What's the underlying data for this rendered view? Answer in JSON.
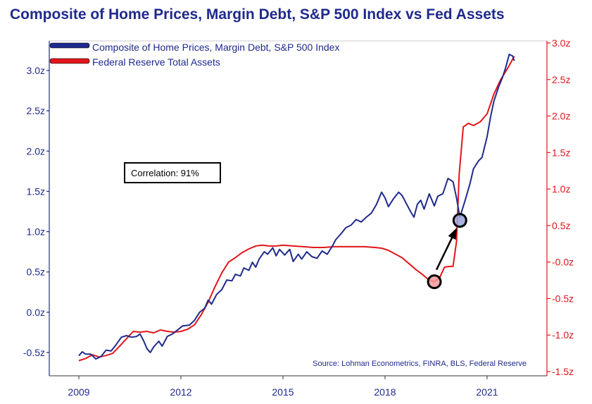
{
  "chart_data": {
    "type": "line",
    "title": "Composite of Home Prices, Margin Debt, S&P 500 Index vs Fed Assets",
    "x_ticks": [
      "2009",
      "2012",
      "2015",
      "2018",
      "2021"
    ],
    "left_axis": {
      "ylim": [
        -0.6,
        3.3
      ],
      "ticks": [
        {
          "value": -0.5,
          "label": "-0.5z"
        },
        {
          "value": 0.0,
          "label": "0.0z"
        },
        {
          "value": 0.5,
          "label": "0.5z"
        },
        {
          "value": 1.0,
          "label": "1.0z"
        },
        {
          "value": 1.5,
          "label": "1.5z"
        },
        {
          "value": 2.0,
          "label": "2.0z"
        },
        {
          "value": 2.5,
          "label": "2.5z"
        },
        {
          "value": 3.0,
          "label": "3.0z"
        }
      ]
    },
    "right_axis": {
      "ylim": [
        -1.5,
        3.0
      ],
      "ticks": [
        {
          "value": -1.5,
          "label": "-1.5z"
        },
        {
          "value": -1.0,
          "label": "-1.0z"
        },
        {
          "value": -0.5,
          "label": "-0.5z"
        },
        {
          "value": 0.0,
          "label": "-0.0z"
        },
        {
          "value": 0.5,
          "label": "0.5z"
        },
        {
          "value": 1.0,
          "label": "1.0z"
        },
        {
          "value": 1.5,
          "label": "1.5z"
        },
        {
          "value": 2.0,
          "label": "2.0z"
        },
        {
          "value": 2.5,
          "label": "2.5z"
        },
        {
          "value": 3.0,
          "label": "3.0z"
        }
      ]
    },
    "series": [
      {
        "name": "Composite of Home Prices, Margin Debt, S&P 500 Index",
        "axis": "left",
        "color": "#1f2a8c",
        "points": [
          [
            2009.0,
            -0.54
          ],
          [
            2009.1,
            -0.49
          ],
          [
            2009.2,
            -0.52
          ],
          [
            2009.35,
            -0.52
          ],
          [
            2009.5,
            -0.58
          ],
          [
            2009.65,
            -0.55
          ],
          [
            2009.8,
            -0.47
          ],
          [
            2009.95,
            -0.48
          ],
          [
            2010.1,
            -0.4
          ],
          [
            2010.25,
            -0.31
          ],
          [
            2010.4,
            -0.29
          ],
          [
            2010.55,
            -0.31
          ],
          [
            2010.7,
            -0.3
          ],
          [
            2010.8,
            -0.27
          ],
          [
            2010.9,
            -0.35
          ],
          [
            2011.0,
            -0.45
          ],
          [
            2011.1,
            -0.5
          ],
          [
            2011.2,
            -0.43
          ],
          [
            2011.35,
            -0.36
          ],
          [
            2011.45,
            -0.42
          ],
          [
            2011.6,
            -0.3
          ],
          [
            2011.75,
            -0.27
          ],
          [
            2011.9,
            -0.22
          ],
          [
            2012.05,
            -0.17
          ],
          [
            2012.25,
            -0.16
          ],
          [
            2012.4,
            -0.1
          ],
          [
            2012.55,
            0.0
          ],
          [
            2012.7,
            0.05
          ],
          [
            2012.8,
            0.15
          ],
          [
            2012.9,
            0.1
          ],
          [
            2013.05,
            0.22
          ],
          [
            2013.2,
            0.28
          ],
          [
            2013.35,
            0.4
          ],
          [
            2013.5,
            0.39
          ],
          [
            2013.6,
            0.47
          ],
          [
            2013.75,
            0.45
          ],
          [
            2013.85,
            0.55
          ],
          [
            2014.0,
            0.52
          ],
          [
            2014.1,
            0.62
          ],
          [
            2014.2,
            0.56
          ],
          [
            2014.3,
            0.66
          ],
          [
            2014.45,
            0.75
          ],
          [
            2014.55,
            0.72
          ],
          [
            2014.7,
            0.8
          ],
          [
            2014.8,
            0.7
          ],
          [
            2014.9,
            0.78
          ],
          [
            2015.05,
            0.71
          ],
          [
            2015.2,
            0.78
          ],
          [
            2015.3,
            0.63
          ],
          [
            2015.45,
            0.72
          ],
          [
            2015.55,
            0.66
          ],
          [
            2015.7,
            0.75
          ],
          [
            2015.85,
            0.69
          ],
          [
            2016.0,
            0.67
          ],
          [
            2016.15,
            0.76
          ],
          [
            2016.3,
            0.72
          ],
          [
            2016.45,
            0.82
          ],
          [
            2016.55,
            0.9
          ],
          [
            2016.7,
            0.97
          ],
          [
            2016.85,
            1.05
          ],
          [
            2017.0,
            1.08
          ],
          [
            2017.15,
            1.15
          ],
          [
            2017.3,
            1.12
          ],
          [
            2017.45,
            1.18
          ],
          [
            2017.6,
            1.23
          ],
          [
            2017.75,
            1.34
          ],
          [
            2017.9,
            1.49
          ],
          [
            2018.0,
            1.42
          ],
          [
            2018.1,
            1.31
          ],
          [
            2018.25,
            1.41
          ],
          [
            2018.4,
            1.49
          ],
          [
            2018.5,
            1.45
          ],
          [
            2018.6,
            1.37
          ],
          [
            2018.75,
            1.25
          ],
          [
            2018.85,
            1.18
          ],
          [
            2018.95,
            1.34
          ],
          [
            2019.05,
            1.39
          ],
          [
            2019.15,
            1.28
          ],
          [
            2019.3,
            1.47
          ],
          [
            2019.45,
            1.32
          ],
          [
            2019.55,
            1.44
          ],
          [
            2019.7,
            1.47
          ],
          [
            2019.85,
            1.66
          ],
          [
            2020.0,
            1.62
          ],
          [
            2020.1,
            1.42
          ],
          [
            2020.2,
            1.18
          ],
          [
            2020.35,
            1.38
          ],
          [
            2020.5,
            1.6
          ],
          [
            2020.6,
            1.78
          ],
          [
            2020.75,
            1.88
          ],
          [
            2020.85,
            1.92
          ],
          [
            2021.0,
            2.18
          ],
          [
            2021.1,
            2.42
          ],
          [
            2021.2,
            2.62
          ],
          [
            2021.35,
            2.81
          ],
          [
            2021.45,
            2.91
          ],
          [
            2021.55,
            3.04
          ],
          [
            2021.65,
            3.2
          ],
          [
            2021.75,
            3.18
          ],
          [
            2021.8,
            3.12
          ]
        ]
      },
      {
        "name": "Federal Reserve Total Assets",
        "axis": "right",
        "color": "#e0161b",
        "points": [
          [
            2009.0,
            -1.35
          ],
          [
            2009.2,
            -1.32
          ],
          [
            2009.4,
            -1.27
          ],
          [
            2009.6,
            -1.3
          ],
          [
            2009.8,
            -1.28
          ],
          [
            2010.0,
            -1.25
          ],
          [
            2010.2,
            -1.15
          ],
          [
            2010.4,
            -1.05
          ],
          [
            2010.6,
            -0.95
          ],
          [
            2010.8,
            -0.96
          ],
          [
            2011.0,
            -0.95
          ],
          [
            2011.2,
            -0.97
          ],
          [
            2011.4,
            -0.93
          ],
          [
            2011.6,
            -0.95
          ],
          [
            2011.8,
            -0.96
          ],
          [
            2012.0,
            -0.95
          ],
          [
            2012.2,
            -0.92
          ],
          [
            2012.4,
            -0.86
          ],
          [
            2012.6,
            -0.72
          ],
          [
            2012.8,
            -0.55
          ],
          [
            2013.0,
            -0.34
          ],
          [
            2013.2,
            -0.15
          ],
          [
            2013.4,
            0.0
          ],
          [
            2013.6,
            0.06
          ],
          [
            2013.8,
            0.13
          ],
          [
            2014.0,
            0.18
          ],
          [
            2014.2,
            0.22
          ],
          [
            2014.4,
            0.23
          ],
          [
            2014.6,
            0.22
          ],
          [
            2014.8,
            0.22
          ],
          [
            2015.0,
            0.23
          ],
          [
            2015.3,
            0.22
          ],
          [
            2015.6,
            0.21
          ],
          [
            2015.9,
            0.2
          ],
          [
            2016.2,
            0.2
          ],
          [
            2016.5,
            0.21
          ],
          [
            2016.8,
            0.21
          ],
          [
            2017.1,
            0.21
          ],
          [
            2017.4,
            0.21
          ],
          [
            2017.7,
            0.2
          ],
          [
            2017.9,
            0.19
          ],
          [
            2018.1,
            0.16
          ],
          [
            2018.3,
            0.11
          ],
          [
            2018.5,
            0.06
          ],
          [
            2018.7,
            -0.02
          ],
          [
            2018.9,
            -0.1
          ],
          [
            2019.1,
            -0.17
          ],
          [
            2019.3,
            -0.25
          ],
          [
            2019.45,
            -0.27
          ],
          [
            2019.6,
            -0.22
          ],
          [
            2019.75,
            -0.07
          ],
          [
            2019.9,
            -0.06
          ],
          [
            2020.0,
            -0.06
          ],
          [
            2020.1,
            0.28
          ],
          [
            2020.18,
            1.2
          ],
          [
            2020.3,
            1.85
          ],
          [
            2020.45,
            1.9
          ],
          [
            2020.6,
            1.87
          ],
          [
            2020.8,
            1.92
          ],
          [
            2021.0,
            2.03
          ],
          [
            2021.2,
            2.3
          ],
          [
            2021.4,
            2.5
          ],
          [
            2021.6,
            2.65
          ],
          [
            2021.8,
            2.82
          ]
        ]
      }
    ],
    "legend": [
      {
        "label": "Composite of Home Prices, Margin Debt, S&P 500 Index",
        "color": "#1f2a8c"
      },
      {
        "label": "Federal Reserve Total Assets",
        "color": "#e0161b"
      }
    ],
    "annotations": {
      "correlation": "Correlation: 91%",
      "source": "Source: Lohman Econometrics, FINRA, BLS, Federal Reserve",
      "circle_red": {
        "x": 2019.45,
        "y": -0.27,
        "axis": "right"
      },
      "circle_blue": {
        "x": 2020.2,
        "y": 1.14,
        "axis": "left"
      }
    }
  }
}
